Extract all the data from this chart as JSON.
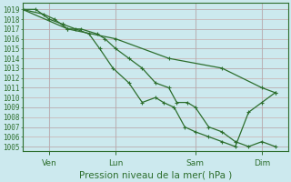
{
  "xlabel": "Pression niveau de la mer( hPa )",
  "ylim": [
    1004.5,
    1019.7
  ],
  "xlim": [
    0,
    10
  ],
  "yticks": [
    1005,
    1006,
    1007,
    1008,
    1009,
    1010,
    1011,
    1012,
    1013,
    1014,
    1015,
    1016,
    1017,
    1018,
    1019
  ],
  "day_labels": [
    "Ven",
    "Lun",
    "Sam",
    "Dim"
  ],
  "day_positions": [
    1.0,
    3.5,
    6.5,
    9.0
  ],
  "bg_color": "#cce9ee",
  "grid_major_color": "#aacdd5",
  "grid_minor_color": "#b8dde3",
  "line_color": "#2d6e2d",
  "line1_x": [
    0.0,
    0.8,
    1.2,
    1.7,
    2.2,
    2.8,
    3.1,
    3.5,
    4.0,
    4.5,
    5.0,
    5.5,
    5.8,
    6.2,
    6.5,
    7.0,
    7.5,
    8.0,
    8.5,
    9.0,
    9.5
  ],
  "line1_y": [
    1019,
    1018.5,
    1018,
    1017,
    1017,
    1016.5,
    1016,
    1015,
    1014,
    1013,
    1011.5,
    1011,
    1009.5,
    1009.5,
    1009,
    1007,
    1006.5,
    1005.5,
    1005,
    1005.5,
    1005
  ],
  "line2_x": [
    0.0,
    0.5,
    1.0,
    1.5,
    2.0,
    2.5,
    2.9,
    3.4,
    4.0,
    4.5,
    5.0,
    5.3,
    5.7,
    6.1,
    6.5,
    7.0,
    7.5,
    8.0,
    8.5,
    9.0,
    9.5
  ],
  "line2_y": [
    1019,
    1019,
    1018,
    1017.5,
    1017,
    1016.5,
    1015,
    1013,
    1011.5,
    1009.5,
    1010,
    1009.5,
    1009,
    1007,
    1006.5,
    1006,
    1005.5,
    1005,
    1008.5,
    1009.5,
    1010.5
  ],
  "line3_x": [
    0.0,
    1.7,
    3.5,
    5.5,
    7.5,
    9.0,
    9.5
  ],
  "line3_y": [
    1019,
    1017,
    1016,
    1014,
    1013,
    1011,
    1010.5
  ],
  "marker_size": 3.5,
  "lw": 0.9,
  "xlabel_fontsize": 7.5,
  "ytick_fontsize": 5.5,
  "xtick_fontsize": 6.5
}
